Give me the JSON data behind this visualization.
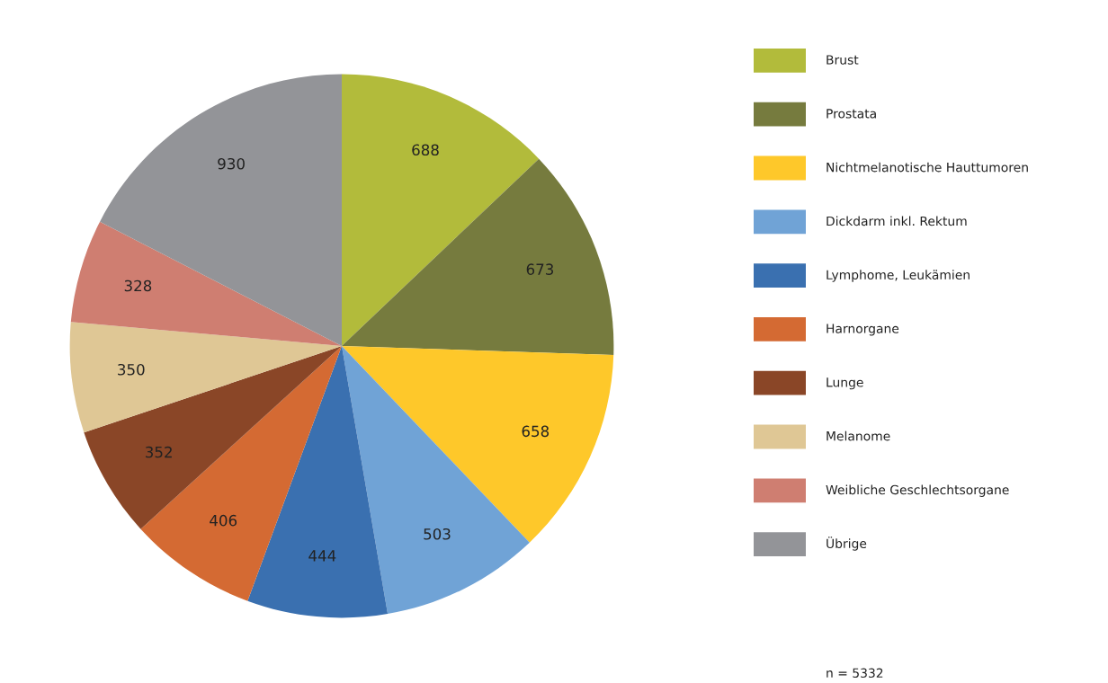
{
  "chart_data": {
    "type": "pie",
    "categories": [
      "Brust",
      "Prostata",
      "Nichtmelanotische Hauttumoren",
      "Dickdarm inkl. Rektum",
      "Lymphome, Leukämien",
      "Harnorgane",
      "Lunge",
      "Melanome",
      "Weibliche Geschlechtsorgane",
      "Übrige"
    ],
    "values": [
      688,
      673,
      658,
      503,
      444,
      406,
      352,
      350,
      328,
      930
    ],
    "colors": [
      "#b2bb3b",
      "#767b3e",
      "#fec82a",
      "#70a3d6",
      "#3a70b0",
      "#d46a33",
      "#8a4627",
      "#dfc795",
      "#cf7e71",
      "#939498"
    ],
    "data_labels": true,
    "legend": "right",
    "annotations": [
      "n = 5332"
    ]
  }
}
